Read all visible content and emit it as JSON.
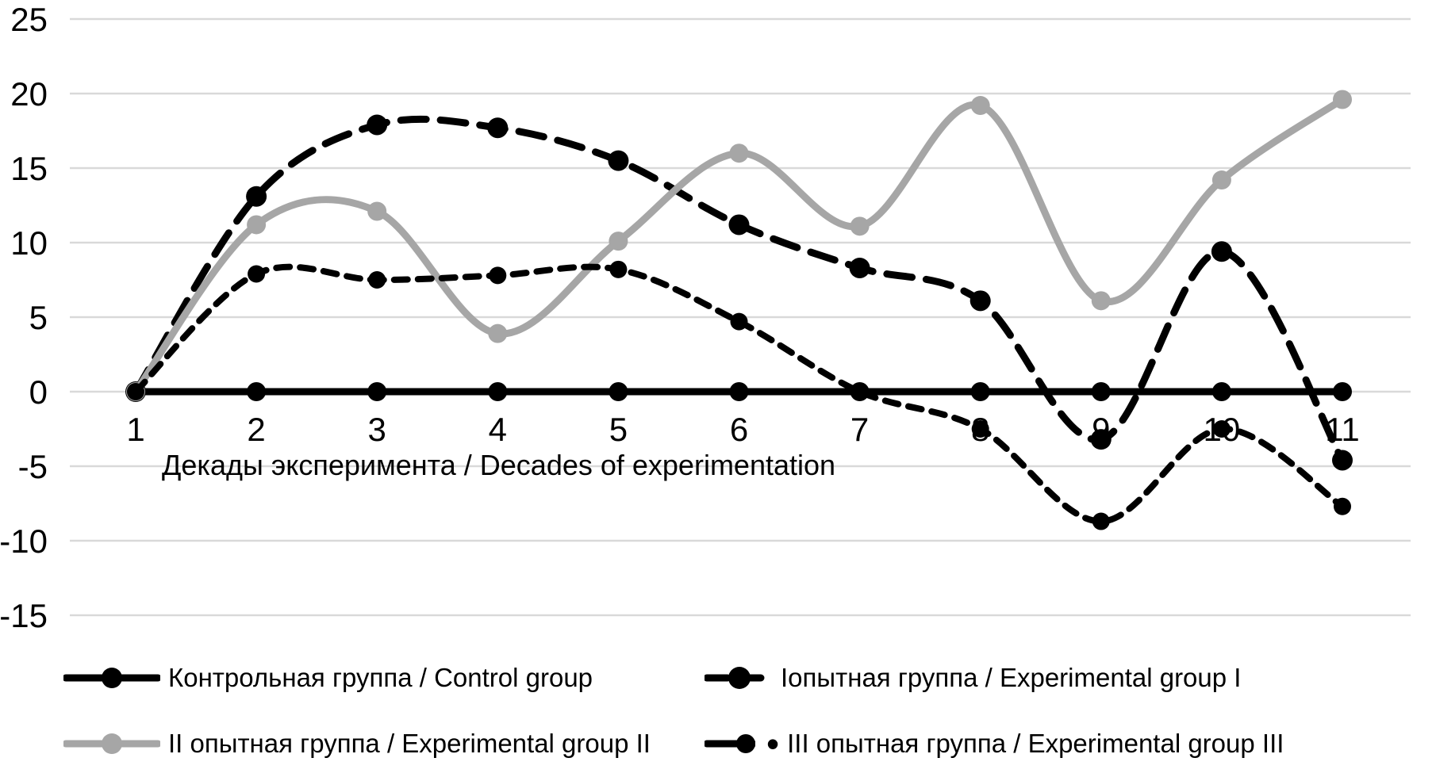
{
  "chart_data": {
    "type": "line",
    "x": [
      1,
      2,
      3,
      4,
      5,
      6,
      7,
      8,
      9,
      10,
      11
    ],
    "xlabel": "Декады эксперимента / Decades of experimentation",
    "ylabel": "",
    "title": "",
    "ylim": [
      -15,
      25
    ],
    "y_ticks": [
      25,
      20,
      15,
      10,
      5,
      0,
      -5,
      -10,
      -15
    ],
    "grid": true,
    "legend_position": "bottom",
    "gridline_color": "#d9d9d9",
    "background_color": "#ffffff",
    "series": [
      {
        "name": "Контрольная группа / Control group",
        "color": "#000000",
        "style": "solid",
        "marker": "circle",
        "smoothed": true,
        "values": [
          0,
          0,
          0,
          0,
          0,
          0,
          0,
          0,
          0,
          0,
          0
        ]
      },
      {
        "name": "Iопытная группа / Experimental group I",
        "color": "#000000",
        "style": "long-dash",
        "marker": "circle",
        "smoothed": true,
        "values": [
          0,
          13.1,
          17.9,
          17.7,
          15.5,
          11.2,
          8.3,
          6.1,
          -3.2,
          9.4,
          -4.6
        ]
      },
      {
        "name": "II опытная группа / Experimental group II",
        "color": "#a6a6a6",
        "style": "solid",
        "marker": "circle",
        "smoothed": true,
        "values": [
          0,
          11.2,
          12.1,
          3.9,
          10.1,
          16.0,
          11.1,
          19.2,
          6.1,
          14.2,
          19.6
        ]
      },
      {
        "name": "III опытная группа / Experimental group III",
        "color": "#000000",
        "style": "short-dash",
        "marker": "circle",
        "smoothed": true,
        "bullet": "•",
        "values": [
          0,
          7.9,
          7.5,
          7.8,
          8.2,
          4.7,
          0,
          -2.5,
          -8.7,
          -2.5,
          -7.7
        ]
      }
    ]
  }
}
